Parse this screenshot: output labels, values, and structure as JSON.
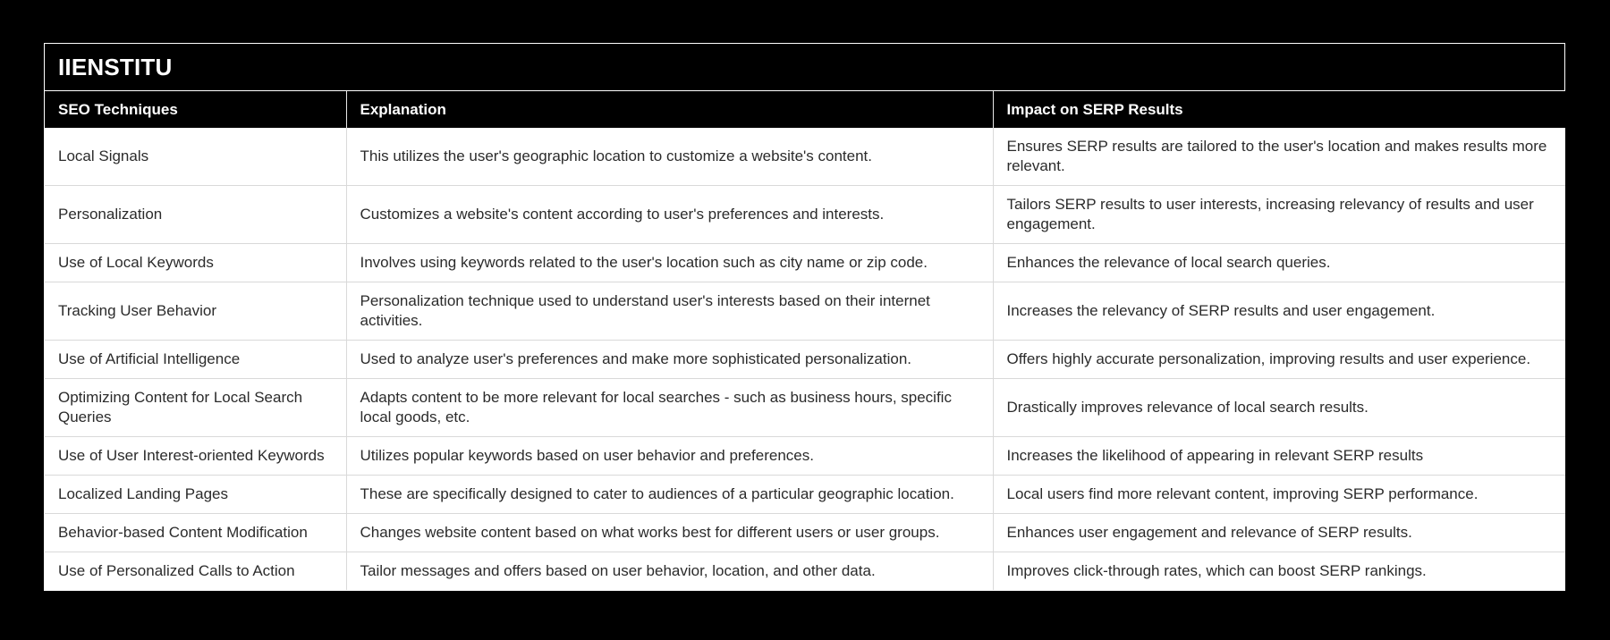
{
  "page": {
    "background_color": "#000000"
  },
  "card": {
    "title": "IIENSTITU",
    "border_color": "#ffffff",
    "title_text_color": "#ffffff"
  },
  "colors": {
    "header_bg": "#000000",
    "header_text": "#ffffff",
    "row_bg": "#ffffff",
    "body_text": "#2b2b2b",
    "divider": "#d9d9d9"
  },
  "table": {
    "columns": [
      "SEO Techniques",
      "Explanation",
      "Impact on SERP Results"
    ],
    "rows": [
      {
        "technique": "Local Signals",
        "explanation": "This utilizes the user's geographic location to customize a website's content.",
        "impact": "Ensures SERP results are tailored to the user's location and makes results more relevant."
      },
      {
        "technique": "Personalization",
        "explanation": "Customizes a website's content according to user's preferences and interests.",
        "impact": "Tailors SERP results to user interests, increasing relevancy of results and user engagement."
      },
      {
        "technique": "Use of Local Keywords",
        "explanation": "Involves using keywords related to the user's location such as city name or zip code.",
        "impact": "Enhances the relevance of local search queries."
      },
      {
        "technique": "Tracking User Behavior",
        "explanation": "Personalization technique used to understand user's interests based on their internet activities.",
        "impact": "Increases the relevancy of SERP results and user engagement."
      },
      {
        "technique": "Use of Artificial Intelligence",
        "explanation": "Used to analyze user's preferences and make more sophisticated personalization.",
        "impact": "Offers highly accurate personalization, improving results and user experience."
      },
      {
        "technique": "Optimizing Content for Local Search Queries",
        "explanation": "Adapts content to be more relevant for local searches - such as business hours, specific local goods, etc.",
        "impact": "Drastically improves relevance of local search results."
      },
      {
        "technique": "Use of User Interest-oriented Keywords",
        "explanation": "Utilizes popular keywords based on user behavior and preferences.",
        "impact": "Increases the likelihood of appearing in relevant SERP results"
      },
      {
        "technique": "Localized Landing Pages",
        "explanation": "These are specifically designed to cater to audiences of a particular geographic location.",
        "impact": "Local users find more relevant content, improving SERP performance."
      },
      {
        "technique": "Behavior-based Content Modification",
        "explanation": "Changes website content based on what works best for different users or user groups.",
        "impact": "Enhances user engagement and relevance of SERP results."
      },
      {
        "technique": "Use of Personalized Calls to Action",
        "explanation": "Tailor messages and offers based on user behavior, location, and other data.",
        "impact": "Improves click-through rates, which can boost SERP rankings."
      }
    ]
  }
}
